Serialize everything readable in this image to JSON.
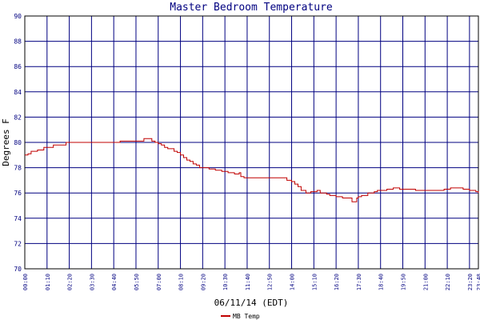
{
  "chart_data": {
    "type": "line",
    "title": "Master Bedroom Temperature",
    "xlabel": "06/11/14 (EDT)",
    "ylabel": "Degrees F",
    "ylim": [
      70,
      90
    ],
    "y_ticks": [
      "70",
      "72",
      "74",
      "76",
      "78",
      "80",
      "82",
      "84",
      "86",
      "88",
      "90"
    ],
    "x_ticks": [
      "00:00",
      "01:10",
      "02:20",
      "03:30",
      "04:40",
      "05:50",
      "07:00",
      "08:10",
      "09:20",
      "10:30",
      "11:40",
      "12:50",
      "14:00",
      "15:10",
      "16:20",
      "17:30",
      "18:40",
      "19:50",
      "21:00",
      "22:10",
      "23:20",
      "23:48"
    ],
    "x_range_minutes": [
      0,
      1428
    ],
    "grid": true,
    "legend_position": "bottom-center",
    "colors": {
      "series": "#c00000",
      "grid": "#000080",
      "text": "#000080",
      "axis": "#000000"
    },
    "series": [
      {
        "name": "MB Temp",
        "x_minutes": [
          0,
          10,
          20,
          40,
          60,
          90,
          110,
          130,
          150,
          170,
          200,
          230,
          260,
          280,
          300,
          330,
          360,
          375,
          385,
          400,
          410,
          420,
          430,
          440,
          450,
          470,
          480,
          490,
          500,
          510,
          520,
          530,
          540,
          550,
          560,
          580,
          600,
          620,
          640,
          660,
          675,
          680,
          690,
          720,
          750,
          780,
          810,
          825,
          840,
          850,
          860,
          870,
          885,
          900,
          920,
          930,
          950,
          960,
          980,
          990,
          1000,
          1020,
          1030,
          1045,
          1050,
          1060,
          1080,
          1100,
          1110,
          1140,
          1160,
          1180,
          1200,
          1230,
          1260,
          1290,
          1320,
          1340,
          1380,
          1400,
          1420,
          1428
        ],
        "values": [
          79.0,
          79.1,
          79.3,
          79.4,
          79.6,
          79.8,
          79.8,
          80.0,
          80.0,
          80.0,
          80.0,
          80.0,
          80.0,
          80.0,
          80.1,
          80.1,
          80.1,
          80.3,
          80.3,
          80.1,
          80.0,
          79.9,
          79.8,
          79.6,
          79.5,
          79.3,
          79.2,
          79.0,
          78.8,
          78.6,
          78.5,
          78.3,
          78.2,
          78.0,
          78.0,
          77.9,
          77.8,
          77.7,
          77.6,
          77.5,
          77.6,
          77.3,
          77.2,
          77.2,
          77.2,
          77.2,
          77.2,
          77.0,
          76.9,
          76.7,
          76.5,
          76.2,
          76.0,
          76.1,
          76.2,
          76.0,
          75.9,
          75.8,
          75.7,
          75.7,
          75.6,
          75.6,
          75.3,
          75.6,
          75.7,
          75.8,
          76.0,
          76.1,
          76.2,
          76.3,
          76.4,
          76.3,
          76.3,
          76.2,
          76.2,
          76.2,
          76.3,
          76.4,
          76.3,
          76.2,
          76.1,
          76.0
        ]
      }
    ]
  }
}
